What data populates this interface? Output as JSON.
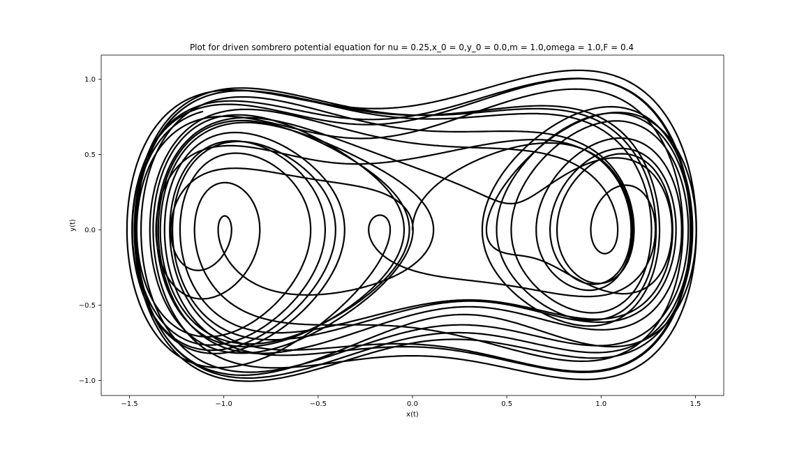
{
  "chart_data": {
    "type": "line",
    "title": "Plot for driven sombrero potential equation for nu = 0.25,x_0 = 0,y_0 = 0.0,m = 1.0,omega = 1.0,F = 0.4",
    "xlabel": "x(t)",
    "ylabel": "y(t)",
    "xlim": [
      -1.65,
      1.65
    ],
    "ylim": [
      -1.1,
      1.16
    ],
    "x_ticks": [
      -1.5,
      -1.0,
      -0.5,
      0.0,
      0.5,
      1.0,
      1.5
    ],
    "x_tick_labels": [
      "−1.5",
      "−1.0",
      "−0.5",
      "0.0",
      "0.5",
      "1.0",
      "1.5"
    ],
    "y_ticks": [
      -1.0,
      -0.5,
      0.0,
      0.5,
      1.0
    ],
    "y_tick_labels": [
      "−1.0",
      "−0.5",
      "0.0",
      "0.5",
      "1.0"
    ],
    "grid": false,
    "legend": "none",
    "line_color": "#000000",
    "equation": {
      "nu": 0.25,
      "x_0": 0,
      "y_0": 0.0,
      "m": 1.0,
      "omega": 1.0,
      "F": 0.4
    }
  }
}
